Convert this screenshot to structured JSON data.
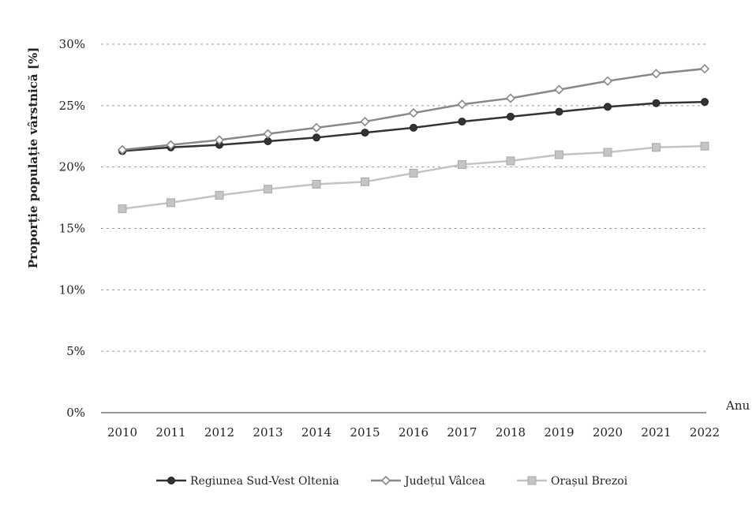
{
  "chart_data": {
    "type": "line",
    "title": "",
    "xlabel": "Anu",
    "ylabel": "Proporție populație vârstnică [%]",
    "ylim": [
      0,
      30
    ],
    "yticks": [
      "0%",
      "5%",
      "10%",
      "15%",
      "20%",
      "25%",
      "30%"
    ],
    "ytick_values": [
      0,
      5,
      10,
      15,
      20,
      25,
      30
    ],
    "grid": true,
    "legend_position": "bottom",
    "x": [
      "2010",
      "2011",
      "2012",
      "2013",
      "2014",
      "2015",
      "2016",
      "2017",
      "2018",
      "2019",
      "2020",
      "2021",
      "2022"
    ],
    "series": [
      {
        "name": "Regiunea Sud-Vest Oltenia",
        "color": "#333333",
        "marker": "circle",
        "values": [
          21.3,
          21.6,
          21.8,
          22.1,
          22.4,
          22.8,
          23.2,
          23.7,
          24.1,
          24.5,
          24.9,
          25.2,
          25.3
        ]
      },
      {
        "name": "Județul Vâlcea",
        "color": "#888888",
        "marker": "diamond",
        "values": [
          21.4,
          21.8,
          22.2,
          22.7,
          23.2,
          23.7,
          24.4,
          25.1,
          25.6,
          26.3,
          27.0,
          27.6,
          28.0
        ]
      },
      {
        "name": "Orașul Brezoi",
        "color": "#c4c4c4",
        "marker": "square",
        "values": [
          16.6,
          17.1,
          17.7,
          18.2,
          18.6,
          18.8,
          19.5,
          20.2,
          20.5,
          21.0,
          21.2,
          21.6,
          21.7
        ]
      }
    ]
  }
}
